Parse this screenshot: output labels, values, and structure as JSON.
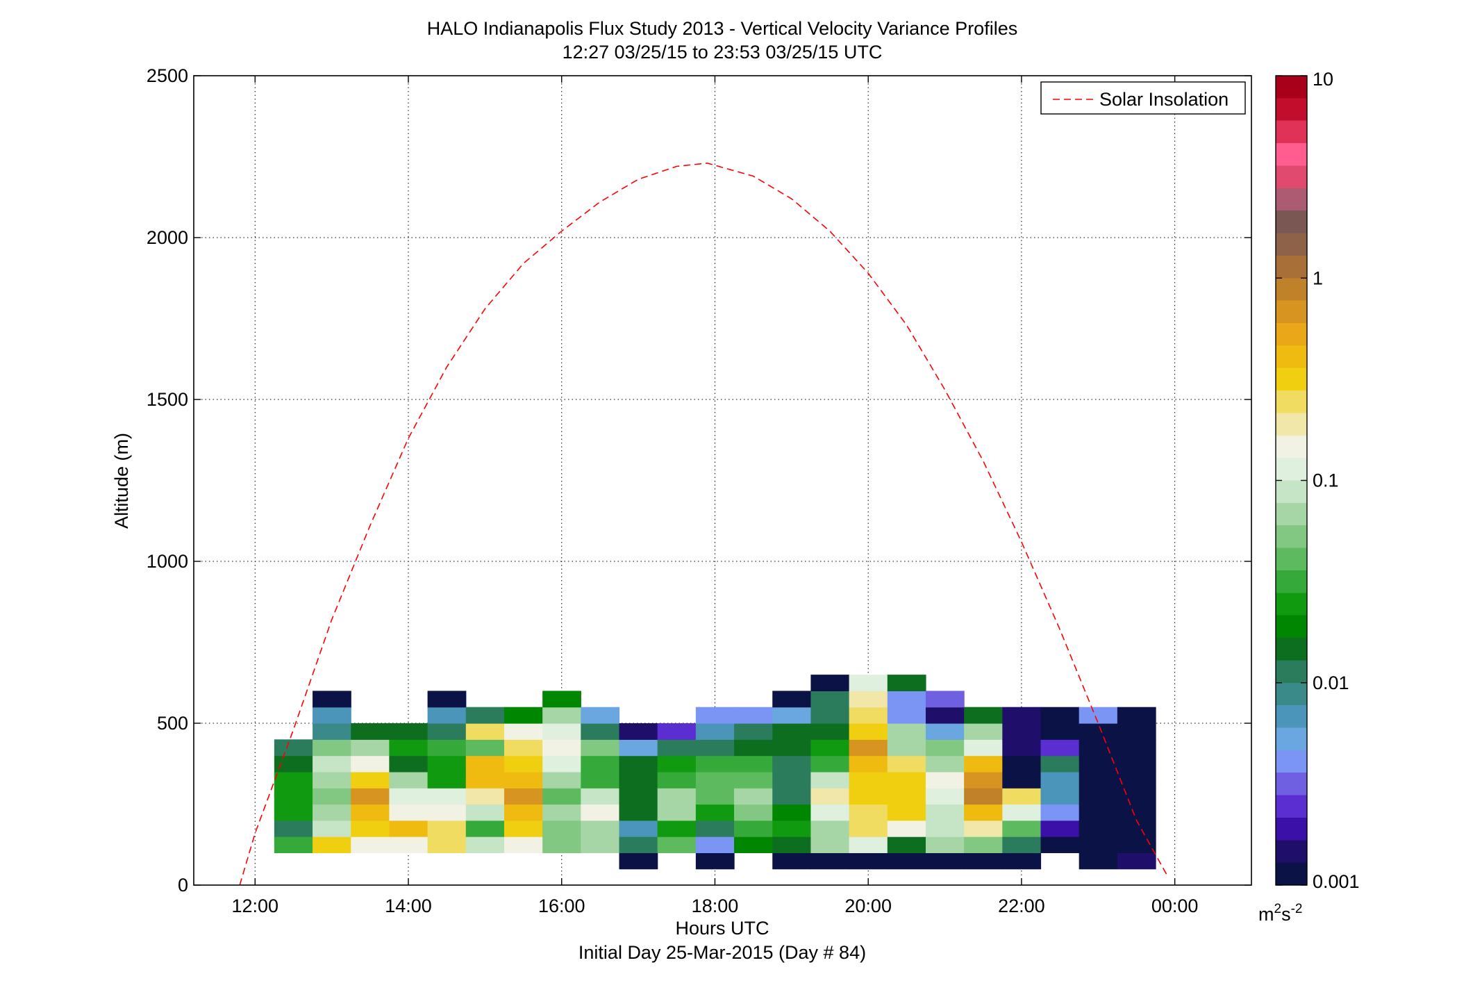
{
  "figure": {
    "title_line1": "HALO Indianapolis Flux Study 2013 - Vertical Velocity Variance Profiles",
    "title_line2": "12:27 03/25/15 to 23:53 03/25/15  UTC",
    "xlabel": "Hours UTC",
    "xlabel2": "Initial Day 25-Mar-2015 (Day # 84)",
    "ylabel": "Altitude (m)",
    "colorbar_unit_base": "m",
    "colorbar_unit_exp1": "2",
    "colorbar_unit_mid": "s",
    "colorbar_unit_exp2": "-2"
  },
  "chart_data": {
    "type": "heatmap",
    "title": "HALO Indianapolis Flux Study 2013 - Vertical Velocity Variance Profiles",
    "subtitle": "12:27 03/25/15 to 23:53 03/25/15  UTC",
    "xlabel": "Hours UTC",
    "ylabel": "Altitude (m)",
    "xlim": [
      11.2,
      25.0
    ],
    "ylim": [
      0,
      2500
    ],
    "grid": true,
    "x_ticks": [
      12,
      14,
      16,
      18,
      20,
      22,
      24
    ],
    "x_tick_labels": [
      "12:00",
      "14:00",
      "16:00",
      "18:00",
      "20:00",
      "22:00",
      "00:00"
    ],
    "y_ticks": [
      0,
      500,
      1000,
      1500,
      2000,
      2500
    ],
    "y_tick_labels": [
      "0",
      "500",
      "1000",
      "1500",
      "2000",
      "2500"
    ],
    "colorbar": {
      "scale": "log",
      "range": [
        0.001,
        10
      ],
      "tick_values": [
        0.001,
        0.01,
        0.1,
        1,
        10
      ],
      "tick_labels": [
        "0.001",
        "0.01",
        "0.1",
        "1",
        "10"
      ],
      "colors": [
        "#0b1346",
        "#1f0f6b",
        "#3a10a8",
        "#5a2ed0",
        "#6e60e0",
        "#7b95f5",
        "#6aa7e0",
        "#4b95bb",
        "#3a8a8a",
        "#2a7c5c",
        "#0e6e20",
        "#008600",
        "#109a10",
        "#35aa3a",
        "#5eba5e",
        "#82c882",
        "#a6d6a6",
        "#c6e4c6",
        "#dff0df",
        "#f1f1e4",
        "#f1e7a8",
        "#f0dc60",
        "#f0cf10",
        "#f0bb10",
        "#eaa818",
        "#d89420",
        "#c08228",
        "#a87038",
        "#8e6248",
        "#7a5752",
        "#ac5c72",
        "#e04a6e",
        "#ff5c90",
        "#e03256",
        "#c20d2c",
        "#a8001a"
      ]
    },
    "legend": {
      "entries": [
        "Solar Insolation"
      ],
      "placement": "top-right"
    },
    "cell_time_width_hr": 0.5,
    "cell_alt_height_m": 50,
    "columns": [
      {
        "t": 12.5,
        "alt_bottom": 100,
        "values": [
          0.035,
          0.012,
          0.025,
          0.025,
          0.025,
          0.014,
          0.011
        ]
      },
      {
        "t": 13.0,
        "alt_bottom": 100,
        "values": [
          0.3,
          0.08,
          0.06,
          0.05,
          0.06,
          0.09,
          0.05,
          0.009,
          0.0065,
          0.001
        ]
      },
      {
        "t": 13.5,
        "alt_bottom": 100,
        "values": [
          0.15,
          0.3,
          0.4,
          0.7,
          0.35,
          0.15,
          0.06,
          0.014
        ]
      },
      {
        "t": 14.0,
        "alt_bottom": 100,
        "values": [
          0.15,
          0.4,
          0.15,
          0.12,
          0.06,
          0.014,
          0.025,
          0.014
        ]
      },
      {
        "t": 14.5,
        "alt_bottom": 100,
        "values": [
          0.25,
          0.25,
          0.15,
          0.12,
          0.025,
          0.025,
          0.035,
          0.012,
          0.006,
          0.001
        ]
      },
      {
        "t": 15.0,
        "alt_bottom": 100,
        "values": [
          0.08,
          0.035,
          0.08,
          0.2,
          0.4,
          0.4,
          0.04,
          0.25,
          0.011
        ]
      },
      {
        "t": 15.5,
        "alt_bottom": 100,
        "values": [
          0.15,
          0.3,
          0.4,
          0.6,
          0.45,
          0.3,
          0.25,
          0.15,
          0.02
        ]
      },
      {
        "t": 16.0,
        "alt_bottom": 100,
        "values": [
          0.05,
          0.05,
          0.06,
          0.04,
          0.06,
          0.12,
          0.13,
          0.1,
          0.06,
          0.02
        ]
      },
      {
        "t": 16.5,
        "alt_bottom": 100,
        "values": [
          0.06,
          0.06,
          0.15,
          0.09,
          0.035,
          0.03,
          0.05,
          0.012,
          0.005
        ]
      },
      {
        "t": 17.0,
        "alt_bottom": 50,
        "values": [
          0.001,
          0.012,
          0.007,
          0.015,
          0.015,
          0.015,
          0.014,
          0.005,
          0.0015
        ]
      },
      {
        "t": 17.5,
        "alt_bottom": 100,
        "values": [
          0.04,
          0.025,
          0.07,
          0.07,
          0.03,
          0.025,
          0.012,
          0.0025
        ]
      },
      {
        "t": 18.0,
        "alt_bottom": 50,
        "values": [
          0.001,
          0.004,
          0.012,
          0.025,
          0.04,
          0.045,
          0.03,
          0.012,
          0.006,
          0.0045
        ]
      },
      {
        "t": 18.5,
        "alt_bottom": 100,
        "values": [
          0.02,
          0.03,
          0.05,
          0.07,
          0.04,
          0.03,
          0.015,
          0.012,
          0.0045
        ]
      },
      {
        "t": 19.0,
        "alt_bottom": 50,
        "values": [
          0.001,
          0.015,
          0.025,
          0.02,
          0.01,
          0.012,
          0.011,
          0.013,
          0.016,
          0.0055,
          0.0012
        ]
      },
      {
        "t": 19.5,
        "alt_bottom": 50,
        "values": [
          0.001,
          0.07,
          0.06,
          0.12,
          0.2,
          0.09,
          0.035,
          0.025,
          0.016,
          0.011,
          0.012,
          0.001
        ]
      },
      {
        "t": 20.0,
        "alt_bottom": 50,
        "values": [
          0.001,
          0.12,
          0.25,
          0.25,
          0.35,
          0.35,
          0.4,
          0.6,
          0.35,
          0.25,
          0.2,
          0.11
        ]
      },
      {
        "t": 20.5,
        "alt_bottom": 50,
        "values": [
          0.001,
          0.015,
          0.15,
          0.3,
          0.35,
          0.3,
          0.25,
          0.06,
          0.06,
          0.004,
          0.0045,
          0.014
        ]
      },
      {
        "t": 21.0,
        "alt_bottom": 50,
        "values": [
          0.001,
          0.07,
          0.08,
          0.08,
          0.12,
          0.15,
          0.06,
          0.05,
          0.0055,
          0.0016,
          0.003
        ]
      },
      {
        "t": 21.5,
        "alt_bottom": 50,
        "values": [
          0.001,
          0.05,
          0.2,
          0.4,
          0.8,
          0.7,
          0.4,
          0.1,
          0.06,
          0.013
        ]
      },
      {
        "t": 22.0,
        "alt_bottom": 50,
        "values": [
          0.001,
          0.012,
          0.04,
          0.12,
          0.25,
          0.0012,
          0.0011,
          0.0015,
          0.0015,
          0.0015
        ]
      },
      {
        "t": 22.5,
        "alt_bottom": 100,
        "values": [
          0.001,
          0.002,
          0.0045,
          0.007,
          0.007,
          0.011,
          0.0025,
          0.0012,
          0.0011
        ]
      },
      {
        "t": 23.0,
        "alt_bottom": 50,
        "values": [
          0.001,
          0.001,
          0.001,
          0.001,
          0.001,
          0.001,
          0.001,
          0.001,
          0.001,
          0.0045
        ]
      },
      {
        "t": 23.5,
        "alt_bottom": 50,
        "values": [
          0.0015,
          0.001,
          0.001,
          0.001,
          0.001,
          0.001,
          0.001,
          0.001,
          0.001,
          0.001
        ]
      }
    ],
    "series": [
      {
        "name": "Solar Insolation",
        "style": "dashed",
        "color": "#ff0000",
        "x": [
          11.8,
          12.0,
          12.5,
          13.0,
          13.5,
          14.0,
          14.5,
          15.0,
          15.5,
          16.0,
          16.5,
          17.0,
          17.5,
          17.9,
          18.5,
          19.0,
          19.5,
          20.0,
          20.5,
          21.0,
          21.5,
          22.0,
          22.5,
          23.0,
          23.5,
          23.9
        ],
        "y": [
          0,
          160,
          480,
          820,
          1110,
          1380,
          1600,
          1780,
          1920,
          2020,
          2110,
          2180,
          2220,
          2230,
          2190,
          2120,
          2020,
          1890,
          1730,
          1530,
          1310,
          1060,
          790,
          500,
          200,
          30
        ]
      }
    ]
  }
}
